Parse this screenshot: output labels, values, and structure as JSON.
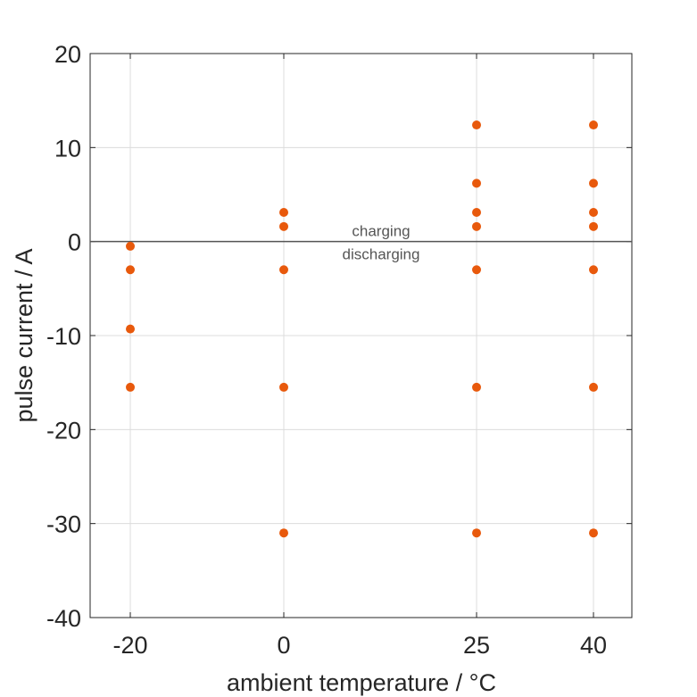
{
  "chart_data": {
    "type": "scatter",
    "xlabel": "ambient temperature / °C",
    "ylabel": "pulse current / A",
    "x_ticks": [
      -20,
      0,
      25,
      40
    ],
    "x_tick_labels": [
      "-20",
      "0",
      "25",
      "40"
    ],
    "y_ticks": [
      -40,
      -30,
      -20,
      -10,
      0,
      10,
      20
    ],
    "y_tick_labels": [
      "-40",
      "-30",
      "-20",
      "-10",
      "0",
      "10",
      "20"
    ],
    "ylim": [
      -40,
      20
    ],
    "grid": true,
    "annotations": [
      "charging",
      "discharging"
    ],
    "marker_color": "#E8590C",
    "series": [
      {
        "points": [
          {
            "x": -20,
            "y": -0.5
          },
          {
            "x": -20,
            "y": -3
          },
          {
            "x": -20,
            "y": -9.3
          },
          {
            "x": -20,
            "y": -15.5
          },
          {
            "x": 0,
            "y": 3.1
          },
          {
            "x": 0,
            "y": 1.6
          },
          {
            "x": 0,
            "y": -3
          },
          {
            "x": 0,
            "y": -15.5
          },
          {
            "x": 0,
            "y": -31
          },
          {
            "x": 25,
            "y": 12.4
          },
          {
            "x": 25,
            "y": 6.2
          },
          {
            "x": 25,
            "y": 3.1
          },
          {
            "x": 25,
            "y": 1.6
          },
          {
            "x": 25,
            "y": -3
          },
          {
            "x": 25,
            "y": -15.5
          },
          {
            "x": 25,
            "y": -31
          },
          {
            "x": 40,
            "y": 12.4
          },
          {
            "x": 40,
            "y": 6.2
          },
          {
            "x": 40,
            "y": 3.1
          },
          {
            "x": 40,
            "y": 1.6
          },
          {
            "x": 40,
            "y": -3
          },
          {
            "x": 40,
            "y": -15.5
          },
          {
            "x": 40,
            "y": -31
          }
        ]
      }
    ]
  }
}
